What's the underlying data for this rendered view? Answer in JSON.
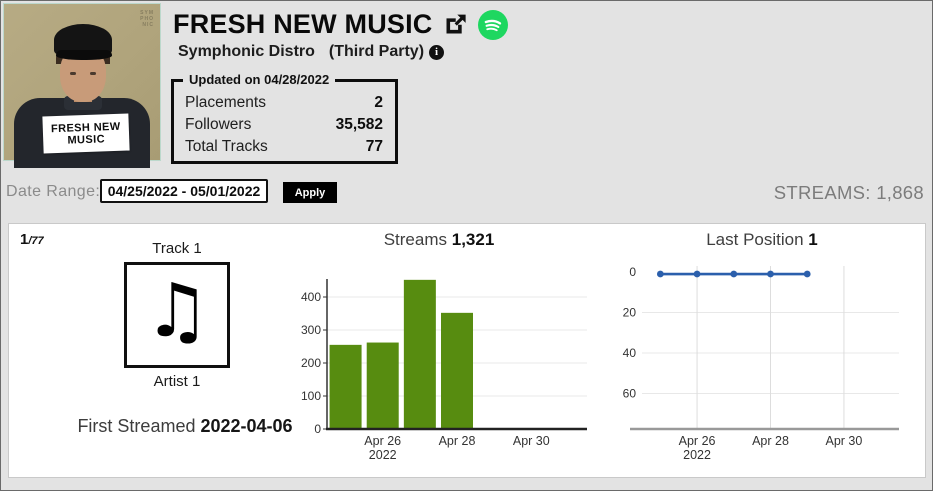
{
  "colors": {
    "page_bg": "#e3e3e3",
    "spotify_green": "#1ed760",
    "bar_green": "#578c10",
    "line_blue": "#2b5fac"
  },
  "header": {
    "title": "FRESH NEW MUSIC",
    "distributor": "Symphonic Distro",
    "party_label": "(Third Party)",
    "info_glyph": "i",
    "photo_label_lines": [
      "FRESH NEW",
      "MUSIC"
    ],
    "photo_watermark_lines": [
      "SYM",
      "PHO",
      "NIC"
    ]
  },
  "stats_box": {
    "legend": "Updated on 04/28/2022",
    "rows": [
      {
        "label": "Placements",
        "value": "2"
      },
      {
        "label": "Followers",
        "value": "35,582"
      },
      {
        "label": "Total Tracks",
        "value": "77"
      }
    ]
  },
  "toolbar": {
    "date_range_label": "Date Range:",
    "date_range_value": "04/25/2022 - 05/01/2022",
    "apply_label": "Apply",
    "streams_total_label": "STREAMS: 1,868"
  },
  "track_panel": {
    "index_current": "1",
    "index_separator": "/",
    "index_total": "77",
    "track_name": "Track 1",
    "artist_name": "Artist 1",
    "note_glyph": "♫",
    "first_streamed_label": "First Streamed",
    "first_streamed_date": "2022-04-06"
  },
  "chart_data": [
    {
      "type": "bar",
      "title": "Streams",
      "title_value": "1,321",
      "x": [
        "Apr 25",
        "Apr 26",
        "Apr 27",
        "Apr 28",
        "Apr 29",
        "Apr 30",
        "May 1"
      ],
      "values": [
        255,
        262,
        452,
        352,
        null,
        null,
        null
      ],
      "bar_color": "#578c10",
      "ylabel_ticks": [
        0,
        100,
        200,
        300,
        400
      ],
      "ylim": [
        0,
        475
      ],
      "grid": "horizontal",
      "xticks": [
        {
          "slot": 1,
          "label": "Apr 26",
          "sub": "2022"
        },
        {
          "slot": 3,
          "label": "Apr 28"
        },
        {
          "slot": 5,
          "label": "Apr 30"
        }
      ]
    },
    {
      "type": "line",
      "title": "Last Position",
      "title_value": "1",
      "x": [
        "Apr 25",
        "Apr 26",
        "Apr 27",
        "Apr 28",
        "Apr 29",
        "Apr 30",
        "May 1"
      ],
      "values": [
        1,
        1,
        1,
        1,
        1,
        null,
        null
      ],
      "line_color": "#2b5fac",
      "y_inverted": true,
      "ylabel_ticks": [
        0,
        20,
        40,
        60
      ],
      "ylim": [
        0,
        78
      ],
      "grid": "both",
      "xticks": [
        {
          "slot": 1,
          "label": "Apr 26",
          "sub": "2022"
        },
        {
          "slot": 3,
          "label": "Apr 28"
        },
        {
          "slot": 5,
          "label": "Apr 30"
        }
      ]
    }
  ]
}
